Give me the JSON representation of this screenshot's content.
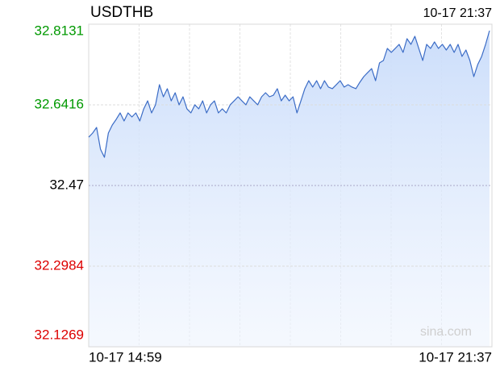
{
  "chart_data": {
    "type": "line",
    "title": "USDTHB",
    "time": "10-17 21:37",
    "x_start_label": "10-17 14:59",
    "x_end_label": "10-17 21:37",
    "watermark": "sina.com",
    "ylim": [
      32.1269,
      32.8131
    ],
    "yticks": [
      32.1269,
      32.2984,
      32.47,
      32.6416,
      32.8131
    ],
    "baseline_tick": 2,
    "up_color": "#009900",
    "down_color": "#dd0000",
    "flat_color": "#000000",
    "color": "#3b6cc6",
    "grid": true,
    "xgrid_divisions": 8,
    "values": [
      32.5729,
      32.5815,
      32.5935,
      32.5472,
      32.53,
      32.5815,
      32.5987,
      32.6107,
      32.6244,
      32.6072,
      32.6244,
      32.6158,
      32.6244,
      32.6072,
      32.633,
      32.6501,
      32.6244,
      32.6416,
      32.6844,
      32.6587,
      32.6759,
      32.6501,
      32.6673,
      32.6416,
      32.6587,
      32.633,
      32.6244,
      32.6416,
      32.633,
      32.6501,
      32.6244,
      32.6416,
      32.6501,
      32.6244,
      32.633,
      32.6244,
      32.6416,
      32.6501,
      32.6587,
      32.6501,
      32.6416,
      32.6587,
      32.6501,
      32.6416,
      32.6587,
      32.6673,
      32.6587,
      32.6621,
      32.6759,
      32.6501,
      32.6621,
      32.6501,
      32.6587,
      32.6244,
      32.6501,
      32.6759,
      32.693,
      32.6793,
      32.693,
      32.6759,
      32.693,
      32.6793,
      32.6759,
      32.6844,
      32.693,
      32.6793,
      32.6844,
      32.6793,
      32.6759,
      32.6896,
      32.7016,
      32.7102,
      32.7187,
      32.693,
      32.7308,
      32.7359,
      32.7616,
      32.7531,
      32.7616,
      32.7702,
      32.7531,
      32.7822,
      32.7702,
      32.7874,
      32.7616,
      32.7359,
      32.7702,
      32.7616,
      32.7754,
      32.7616,
      32.7702,
      32.7582,
      32.7702,
      32.7531,
      32.7702,
      32.7445,
      32.7582,
      32.7359,
      32.7016,
      32.7273,
      32.7445,
      32.7702,
      32.7994
    ]
  }
}
